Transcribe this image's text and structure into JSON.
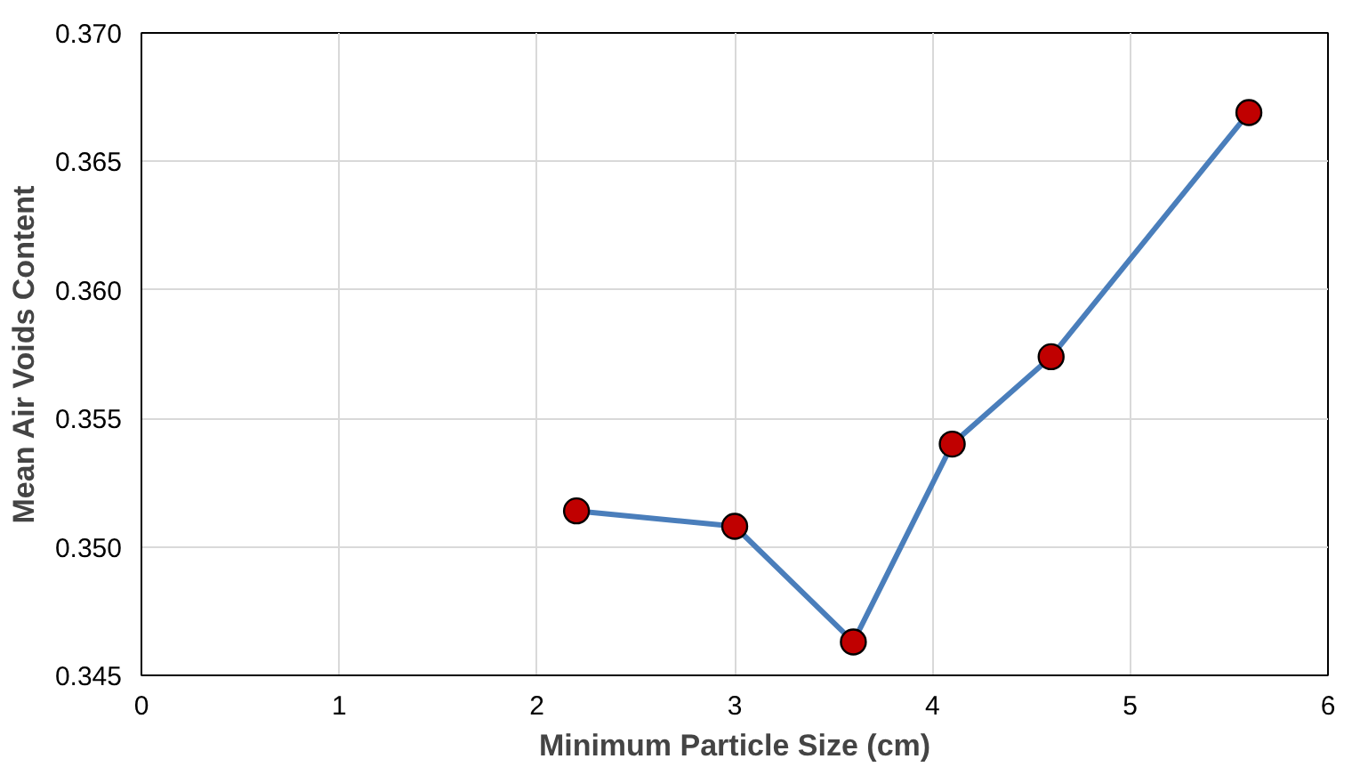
{
  "chart_data": {
    "type": "line",
    "xlabel": "Minimum Particle Size (cm)",
    "ylabel": "Mean Air Voids Content",
    "series": [
      {
        "color": "#4a7ebb",
        "x": [
          2.2,
          3.0,
          3.6,
          4.1,
          4.6,
          5.6
        ],
        "values": [
          0.3514,
          0.3508,
          0.3463,
          0.354,
          0.3574,
          0.3669
        ]
      }
    ],
    "xlim": [
      0,
      6
    ],
    "xticks": [
      0,
      1,
      2,
      3,
      4,
      5,
      6
    ],
    "ylim": [
      0.345,
      0.37
    ],
    "yticks": [
      {
        "value": 0.345,
        "label": "0.345"
      },
      {
        "value": 0.35,
        "label": "0.350"
      },
      {
        "value": 0.355,
        "label": "0.355"
      },
      {
        "value": 0.36,
        "label": "0.360"
      },
      {
        "value": 0.365,
        "label": "0.365"
      },
      {
        "value": 0.37,
        "label": "0.370"
      }
    ],
    "grid": true,
    "marker": "circle",
    "line_style": "solid"
  }
}
